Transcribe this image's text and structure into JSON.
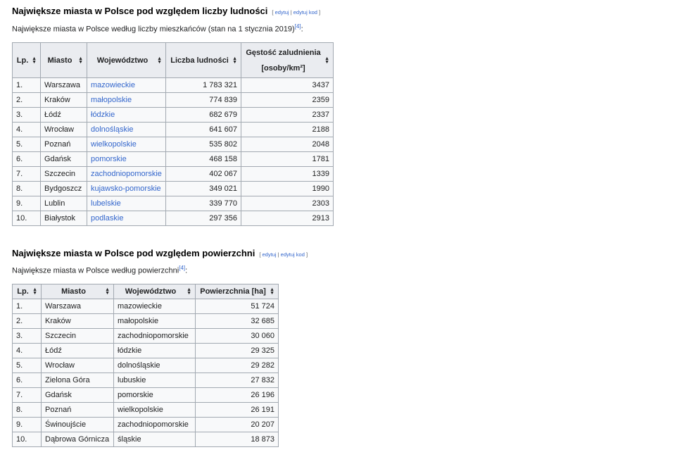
{
  "population": {
    "heading": "Największe miasta w Polsce pod względem liczby ludności",
    "edit": "[ edytuj | edytuj kod ]",
    "edit_open": "[",
    "edit1": "edytuj",
    "sep": "|",
    "edit2": "edytuj kod",
    "edit_close": "]",
    "intro": "Największe miasta w Polsce według liczby mieszkańców (stan na 1 stycznia 2019)",
    "ref": "[4]",
    "intro_end": ":",
    "headers": [
      "Lp.",
      "Miasto",
      "Województwo",
      "Liczba ludności",
      "Gęstość zaludnienia",
      "[osoby/km²]"
    ],
    "rows": [
      [
        "1.",
        "Warszawa",
        "mazowieckie",
        "1 783 321",
        "3437"
      ],
      [
        "2.",
        "Kraków",
        "małopolskie",
        "774 839",
        "2359"
      ],
      [
        "3.",
        "Łódź",
        "łódzkie",
        "682 679",
        "2337"
      ],
      [
        "4.",
        "Wrocław",
        "dolnośląskie",
        "641 607",
        "2188"
      ],
      [
        "5.",
        "Poznań",
        "wielkopolskie",
        "535 802",
        "2048"
      ],
      [
        "6.",
        "Gdańsk",
        "pomorskie",
        "468 158",
        "1781"
      ],
      [
        "7.",
        "Szczecin",
        "zachodniopomorskie",
        "402 067",
        "1339"
      ],
      [
        "8.",
        "Bydgoszcz",
        "kujawsko-pomorskie",
        "349 021",
        "1990"
      ],
      [
        "9.",
        "Lublin",
        "lubelskie",
        "339 770",
        "2303"
      ],
      [
        "10.",
        "Białystok",
        "podlaskie",
        "297 356",
        "2913"
      ]
    ]
  },
  "area": {
    "heading": "Największe miasta w Polsce pod względem powierzchni",
    "edit_open": "[",
    "edit1": "edytuj",
    "sep": "|",
    "edit2": "edytuj kod",
    "edit_close": "]",
    "intro": "Największe miasta w Polsce według powierzchni",
    "ref": "[4]",
    "intro_end": ":",
    "headers": [
      "Lp.",
      "Miasto",
      "Województwo",
      "Powierzchnia [ha]"
    ],
    "rows": [
      [
        "1.",
        "Warszawa",
        "mazowieckie",
        "51 724"
      ],
      [
        "2.",
        "Kraków",
        "małopolskie",
        "32 685"
      ],
      [
        "3.",
        "Szczecin",
        "zachodniopomorskie",
        "30 060"
      ],
      [
        "4.",
        "Łódź",
        "łódzkie",
        "29 325"
      ],
      [
        "5.",
        "Wrocław",
        "dolnośląskie",
        "29 282"
      ],
      [
        "6.",
        "Zielona Góra",
        "lubuskie",
        "27 832"
      ],
      [
        "7.",
        "Gdańsk",
        "pomorskie",
        "26 196"
      ],
      [
        "8.",
        "Poznań",
        "wielkopolskie",
        "26 191"
      ],
      [
        "9.",
        "Świnoujście",
        "zachodniopomorskie",
        "20 207"
      ],
      [
        "10.",
        "Dąbrowa Górnicza",
        "śląskie",
        "18 873"
      ]
    ]
  }
}
